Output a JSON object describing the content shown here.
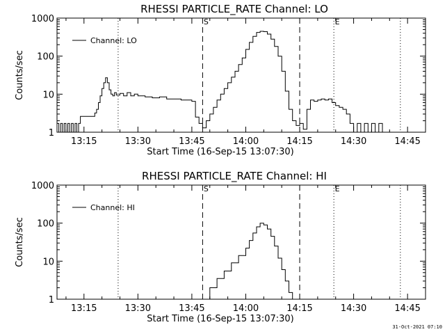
{
  "footer_stamp": "31-Oct-2021 07:10",
  "chart_data": [
    {
      "type": "line",
      "title": "RHESSI PARTICLE_RATE Channel: LO",
      "xlabel": "Start Time (16-Sep-15 13:07:30)",
      "ylabel": "Counts/sec",
      "yscale": "log",
      "ylim": [
        1,
        1000
      ],
      "xlim": [
        "13:07:30",
        "14:50:00"
      ],
      "x_ticks": [
        "13:15",
        "13:30",
        "13:45",
        "14:00",
        "14:15",
        "14:30",
        "14:45"
      ],
      "y_ticks": [
        "1",
        "10",
        "100",
        "1000"
      ],
      "legend_position": "top-left",
      "series": [
        {
          "name": "Channel: LO",
          "x": [
            "13:07:30",
            "13:08:00",
            "13:08:30",
            "13:09:00",
            "13:09:30",
            "13:10:00",
            "13:10:30",
            "13:11:00",
            "13:11:30",
            "13:12:00",
            "13:12:30",
            "13:13:00",
            "13:13:30",
            "13:14:00",
            "13:15:00",
            "13:16:00",
            "13:17:00",
            "13:18:00",
            "13:18:30",
            "13:19:00",
            "13:19:30",
            "13:20:00",
            "13:20:30",
            "13:21:00",
            "13:21:30",
            "13:22:00",
            "13:22:30",
            "13:23:00",
            "13:23:30",
            "13:24:00",
            "13:25:00",
            "13:26:00",
            "13:27:00",
            "13:28:00",
            "13:29:00",
            "13:30:00",
            "13:32:00",
            "13:34:00",
            "13:36:00",
            "13:38:00",
            "13:40:00",
            "13:42:00",
            "13:44:00",
            "13:45:00",
            "13:46:00",
            "13:47:00",
            "13:48:00",
            "13:49:00",
            "13:50:00",
            "13:51:00",
            "13:52:00",
            "13:53:00",
            "13:54:00",
            "13:55:00",
            "13:56:00",
            "13:57:00",
            "13:58:00",
            "13:59:00",
            "14:00:00",
            "14:01:00",
            "14:02:00",
            "14:03:00",
            "14:04:00",
            "14:05:00",
            "14:06:00",
            "14:07:00",
            "14:08:00",
            "14:09:00",
            "14:10:00",
            "14:11:00",
            "14:12:00",
            "14:13:00",
            "14:14:00",
            "14:15:00",
            "14:16:00",
            "14:17:00",
            "14:18:00",
            "14:19:00",
            "14:20:00",
            "14:21:00",
            "14:22:00",
            "14:23:00",
            "14:24:00",
            "14:25:00",
            "14:26:00",
            "14:27:00",
            "14:28:00",
            "14:29:00",
            "14:30:00",
            "14:31:00",
            "14:32:00",
            "14:33:00",
            "14:34:00",
            "14:35:00",
            "14:36:00",
            "14:37:00",
            "14:38:00",
            "14:39:00",
            "14:40:00",
            "14:41:00",
            "14:42:00"
          ],
          "y": [
            1.7,
            1.0,
            1.7,
            1.0,
            1.7,
            1.0,
            1.7,
            1.0,
            1.7,
            1.0,
            1.7,
            1.0,
            1.7,
            2.6,
            2.6,
            2.6,
            2.6,
            3.2,
            4.0,
            6.0,
            9.0,
            14.0,
            20.0,
            27.0,
            20.0,
            13.0,
            10.0,
            9.0,
            11.0,
            9.5,
            10.5,
            9.0,
            11.0,
            9.0,
            10.0,
            9.0,
            8.5,
            8.0,
            8.5,
            7.5,
            7.5,
            7.0,
            7.0,
            6.5,
            2.5,
            1.7,
            1.3,
            2.0,
            3.0,
            4.5,
            7.0,
            10.0,
            14.0,
            20.0,
            28.0,
            40.0,
            60.0,
            90.0,
            150.0,
            230.0,
            330.0,
            420.0,
            450.0,
            440.0,
            380.0,
            280.0,
            180.0,
            100.0,
            40.0,
            12.0,
            4.0,
            2.0,
            1.5,
            1.7,
            1.2,
            4.0,
            7.0,
            6.5,
            7.0,
            7.5,
            7.0,
            7.5,
            6.0,
            5.0,
            4.5,
            4.0,
            3.0,
            1.7,
            1.0,
            1.7,
            1.0,
            1.7,
            1.0,
            1.7,
            1.0,
            1.7,
            1.0,
            1.0,
            1.0,
            1.0,
            1.0
          ]
        }
      ],
      "markers": [
        {
          "time": "13:24:30",
          "style": "dotted",
          "label": ""
        },
        {
          "time": "13:48:00",
          "style": "dashed",
          "label": "S"
        },
        {
          "time": "14:15:00",
          "style": "dashed",
          "label": ""
        },
        {
          "time": "14:24:30",
          "style": "dotted",
          "label": "E"
        },
        {
          "time": "14:43:00",
          "style": "dotted",
          "label": ""
        }
      ]
    },
    {
      "type": "line",
      "title": "RHESSI PARTICLE_RATE Channel: HI",
      "xlabel": "Start Time (16-Sep-15 13:07:30)",
      "ylabel": "Counts/sec",
      "yscale": "log",
      "ylim": [
        1,
        1000
      ],
      "xlim": [
        "13:07:30",
        "14:50:00"
      ],
      "x_ticks": [
        "13:15",
        "13:30",
        "13:45",
        "14:00",
        "14:15",
        "14:30",
        "14:45"
      ],
      "y_ticks": [
        "1",
        "10",
        "100",
        "1000"
      ],
      "legend_position": "top-left",
      "series": [
        {
          "name": "Channel: HI",
          "x": [
            "13:48:00",
            "13:50:00",
            "13:52:00",
            "13:54:00",
            "13:56:00",
            "13:58:00",
            "14:00:00",
            "14:01:00",
            "14:02:00",
            "14:03:00",
            "14:04:00",
            "14:05:00",
            "14:06:00",
            "14:07:00",
            "14:08:00",
            "14:09:00",
            "14:10:00",
            "14:11:00",
            "14:12:00",
            "14:13:00"
          ],
          "y": [
            1.0,
            2.0,
            3.5,
            5.5,
            9.0,
            14.0,
            22.0,
            35.0,
            55.0,
            80.0,
            100.0,
            90.0,
            70.0,
            45.0,
            25.0,
            12.0,
            6.0,
            3.0,
            1.5,
            1.0
          ]
        }
      ],
      "markers": [
        {
          "time": "13:24:30",
          "style": "dotted",
          "label": ""
        },
        {
          "time": "13:48:00",
          "style": "dashed",
          "label": "S"
        },
        {
          "time": "14:15:00",
          "style": "dashed",
          "label": ""
        },
        {
          "time": "14:24:30",
          "style": "dotted",
          "label": "E"
        },
        {
          "time": "14:43:00",
          "style": "dotted",
          "label": ""
        }
      ]
    }
  ]
}
